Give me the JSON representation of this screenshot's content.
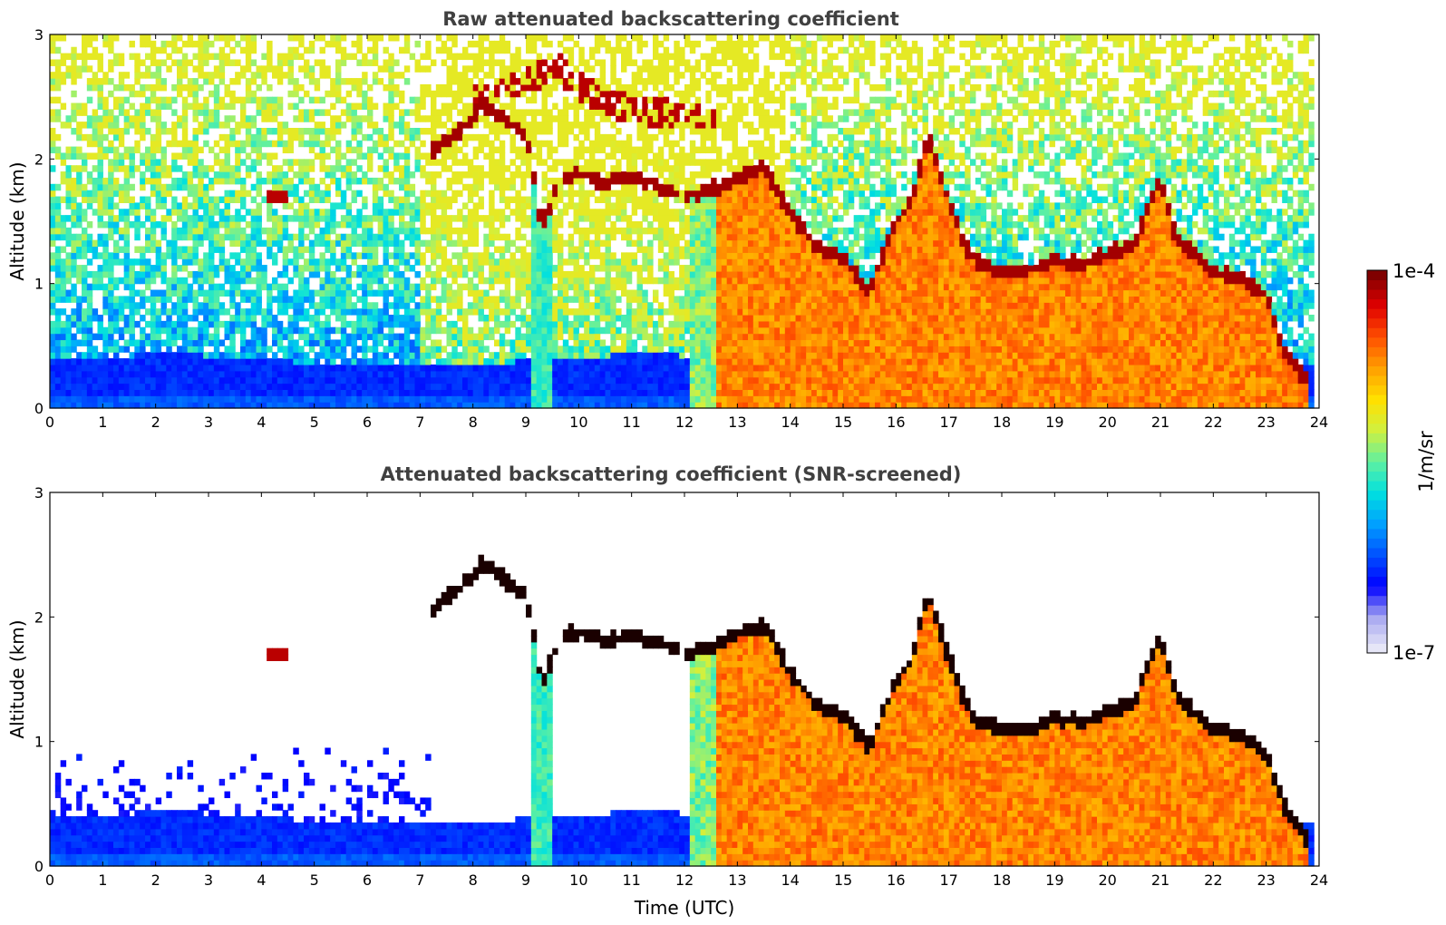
{
  "chart_data": [
    {
      "type": "heatmap",
      "title": "Raw attenuated backscattering coefficient",
      "xlabel": "",
      "ylabel": "Altitude (km)",
      "xlim": [
        0,
        24
      ],
      "ylim": [
        0,
        3
      ],
      "x_ticks": [
        "0",
        "1",
        "2",
        "3",
        "4",
        "5",
        "6",
        "7",
        "8",
        "9",
        "10",
        "11",
        "12",
        "13",
        "14",
        "15",
        "16",
        "17",
        "18",
        "19",
        "20",
        "21",
        "22",
        "23",
        "24"
      ],
      "y_ticks": [
        "0",
        "1",
        "2",
        "3"
      ],
      "snr_screened": false,
      "grid": false,
      "cloud_top_km": {
        "t": [
          7.2,
          7.5,
          7.8,
          8.2,
          8.6,
          9.0,
          9.3,
          9.6,
          10.0,
          10.5,
          11.0,
          11.5,
          12.0,
          12.5,
          13.0,
          13.5,
          14.0,
          14.5,
          15.0,
          15.5,
          16.0,
          16.3,
          16.6,
          16.9,
          17.3,
          17.6,
          18.0,
          18.5,
          19.0,
          19.5,
          20.0,
          20.5,
          20.8,
          21.0,
          21.3,
          21.6,
          22.0,
          22.5,
          23.0,
          23.3,
          23.6,
          23.8
        ],
        "alt": [
          2.05,
          2.15,
          2.25,
          2.45,
          2.3,
          2.2,
          1.45,
          1.8,
          1.9,
          1.8,
          1.85,
          1.8,
          1.7,
          1.75,
          1.85,
          1.95,
          1.55,
          1.3,
          1.2,
          0.95,
          1.5,
          1.65,
          2.2,
          1.8,
          1.3,
          1.15,
          1.1,
          1.1,
          1.2,
          1.15,
          1.25,
          1.3,
          1.65,
          1.85,
          1.35,
          1.25,
          1.1,
          1.05,
          0.9,
          0.5,
          0.3,
          0.2
        ]
      },
      "fog_layer": {
        "t": [
          8.0,
          8.4,
          9.6,
          10.0,
          10.6,
          11.2,
          12.6
        ],
        "alt": [
          2.5,
          2.55,
          2.75,
          2.6,
          2.45,
          2.4,
          2.35
        ]
      },
      "small_cloud": {
        "t": 4.3,
        "alt": 1.7
      },
      "boundary_layer_km": 0.45
    },
    {
      "type": "heatmap",
      "title": "Attenuated backscattering coefficient (SNR-screened)",
      "xlabel": "Time (UTC)",
      "ylabel": "Altitude (km)",
      "xlim": [
        0,
        24
      ],
      "ylim": [
        0,
        3
      ],
      "x_ticks": [
        "0",
        "1",
        "2",
        "3",
        "4",
        "5",
        "6",
        "7",
        "8",
        "9",
        "10",
        "11",
        "12",
        "13",
        "14",
        "15",
        "16",
        "17",
        "18",
        "19",
        "20",
        "21",
        "22",
        "23",
        "24"
      ],
      "y_ticks": [
        "0",
        "1",
        "2",
        "3"
      ],
      "snr_screened": true,
      "grid": false
    }
  ],
  "colorbar": {
    "label": "1/m/sr",
    "min_label": "1e-7",
    "max_label": "1e-4",
    "scale": "log",
    "range": [
      1e-07,
      0.0001
    ],
    "colors": [
      "#e6e6f7",
      "#a8a8f0",
      "#0000ff",
      "#0050ff",
      "#00a0ff",
      "#00e0e0",
      "#60f0a0",
      "#d0f040",
      "#ffe000",
      "#ffa000",
      "#ff5000",
      "#e00000",
      "#800000"
    ]
  }
}
